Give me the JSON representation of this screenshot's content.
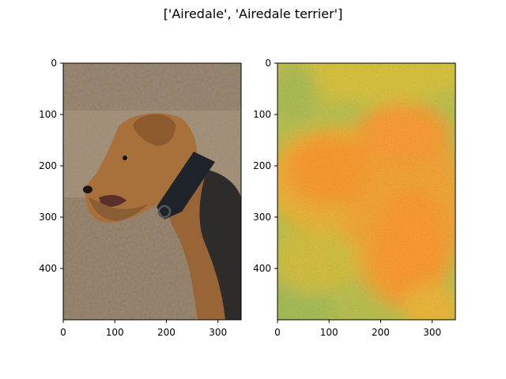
{
  "figure": {
    "title": "['Airedale', 'Airedale terrier']"
  },
  "chart_data": [
    {
      "type": "image",
      "panel": "left",
      "content": "photo of an Airedale terrier with a black collar in profile on a sandy background",
      "xlim": [
        0,
        345
      ],
      "ylim": [
        500,
        0
      ],
      "xticks": [
        0,
        100,
        200,
        300
      ],
      "yticks": [
        0,
        100,
        200,
        300,
        400
      ],
      "colors": {
        "background": "#9c8a72",
        "fur": "#a06a3a",
        "collar": "#1e2329",
        "saddle": "#2c2a2a"
      }
    },
    {
      "type": "heatmap",
      "panel": "right",
      "content": "saliency map, orange hotspot over head and neck region, green/cyan at borders",
      "xlim": [
        0,
        345
      ],
      "ylim": [
        500,
        0
      ],
      "xticks": [
        0,
        100,
        200,
        300
      ],
      "yticks": [
        0,
        100,
        200,
        300,
        400
      ],
      "colors": {
        "low": "#40e070",
        "mid": "#a8e040",
        "high": "#f59428"
      }
    }
  ]
}
